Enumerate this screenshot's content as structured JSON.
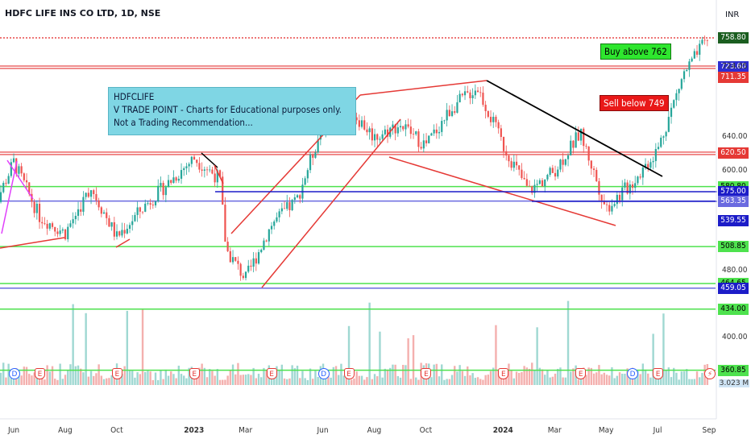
{
  "header": {
    "title": "HDFC LIFE INS CO LTD, 1D, NSE",
    "currency": "INR"
  },
  "annotations": {
    "note_lines": [
      "HDFCLIFE",
      "V TRADE POINT - Charts for Educational purposes only.",
      "Not a Trading Recommendation..."
    ],
    "buy_text": "Buy above 762",
    "sell_text": "Sell below 749"
  },
  "colors": {
    "up": "#26a69a",
    "down": "#ef5350",
    "green_line": "#4ee24e",
    "red_line": "#e84a4a",
    "blue_line": "#1c1cc8",
    "purple_line": "#6a6ae0"
  },
  "chart_data": {
    "type": "candlestick",
    "title": "HDFC LIFE INS CO LTD, 1D, NSE",
    "ylim": [
      341,
      790
    ],
    "y_ticks": [
      "724.05",
      "640.00",
      "600.00",
      "480.00",
      "400.00"
    ],
    "x_ticks": [
      "Jun",
      "Aug",
      "Oct",
      "2023",
      "Mar",
      "Jun",
      "Aug",
      "Oct",
      "2024",
      "Mar",
      "May",
      "Jul",
      "Sep"
    ],
    "x_bold": [
      "2023",
      "2024"
    ],
    "price_labels": [
      {
        "text": "758.80",
        "value": 758.8,
        "bg": "#1b5e20",
        "fg": "#ffffff"
      },
      {
        "text": "723.60",
        "value": 723.6,
        "bg": "#2d2dd1",
        "fg": "#ffffff"
      },
      {
        "text": "711.35",
        "value": 711.35,
        "bg": "#e53935",
        "fg": "#ffffff"
      },
      {
        "text": "620.50",
        "value": 620.5,
        "bg": "#e53935",
        "fg": "#ffffff"
      },
      {
        "text": "580.80",
        "value": 580.8,
        "bg": "#4ee24e",
        "fg": "#000000"
      },
      {
        "text": "575.00",
        "value": 575.0,
        "bg": "#1c1cc8",
        "fg": "#ffffff"
      },
      {
        "text": "563.35",
        "value": 563.35,
        "bg": "#6a6ae0",
        "fg": "#ffffff"
      },
      {
        "text": "539.55",
        "value": 539.55,
        "bg": "#1c1cc8",
        "fg": "#ffffff"
      },
      {
        "text": "508.85",
        "value": 508.85,
        "bg": "#4ee24e",
        "fg": "#000000"
      },
      {
        "text": "464.65",
        "value": 464.65,
        "bg": "#4ee24e",
        "fg": "#000000"
      },
      {
        "text": "459.05",
        "value": 459.05,
        "bg": "#1c1cc8",
        "fg": "#ffffff"
      },
      {
        "text": "434.00",
        "value": 434.0,
        "bg": "#4ee24e",
        "fg": "#000000"
      },
      {
        "text": "360.85",
        "value": 360.85,
        "bg": "#4ee24e",
        "fg": "#000000"
      }
    ],
    "volume_label": "3.023 M",
    "horizontal_levels": [
      {
        "value": 758.8,
        "color": "#e84a4a",
        "style": "dotted"
      },
      {
        "value": 723.6,
        "color": "#e84a4a",
        "style": "double"
      },
      {
        "value": 620.5,
        "color": "#e84a4a",
        "style": "double"
      },
      {
        "value": 580.8,
        "color": "#4ee24e",
        "style": "solid"
      },
      {
        "value": 563.35,
        "color": "#6a6ae0",
        "style": "solid"
      },
      {
        "value": 508.85,
        "color": "#4ee24e",
        "style": "solid"
      },
      {
        "value": 464.65,
        "color": "#4ee24e",
        "style": "solid"
      },
      {
        "value": 459.05,
        "color": "#6a6ae0",
        "style": "solid"
      },
      {
        "value": 434.0,
        "color": "#4ee24e",
        "style": "solid"
      },
      {
        "value": 360.85,
        "color": "#4ee24e",
        "style": "solid"
      }
    ],
    "events": [
      {
        "type": "D",
        "date": "Jun 2022"
      },
      {
        "type": "E",
        "date": "Jul 2022"
      },
      {
        "type": "E",
        "date": "Oct 2022"
      },
      {
        "type": "E",
        "date": "Jan 2023"
      },
      {
        "type": "E",
        "date": "Apr 2023"
      },
      {
        "type": "D",
        "date": "Jun 2023"
      },
      {
        "type": "E",
        "date": "Jul 2023"
      },
      {
        "type": "E",
        "date": "Oct 2023"
      },
      {
        "type": "E",
        "date": "Jan 2024"
      },
      {
        "type": "E",
        "date": "Apr 2024"
      },
      {
        "type": "D",
        "date": "Jun 2024"
      },
      {
        "type": "E",
        "date": "Jul 2024"
      },
      {
        "type": "S",
        "date": "Sep 2024"
      }
    ],
    "path_keypoints": [
      [
        "May 2022",
        540
      ],
      [
        "Jun 2022",
        610
      ],
      [
        "Jul 2022",
        545
      ],
      [
        "Aug 2022",
        525
      ],
      [
        "Sep 2022",
        580
      ],
      [
        "Oct 2022",
        520
      ],
      [
        "Nov 2022",
        555
      ],
      [
        "Dec 2022",
        585
      ],
      [
        "Jan 2023",
        615
      ],
      [
        "Feb 2023",
        590
      ],
      [
        "Feb 2023",
        505
      ],
      [
        "Mar 2023",
        470
      ],
      [
        "Apr 2023",
        535
      ],
      [
        "May 2023",
        565
      ],
      [
        "Jun 2023",
        655
      ],
      [
        "Jul 2023",
        675
      ],
      [
        "Aug 2023",
        640
      ],
      [
        "Sep 2023",
        655
      ],
      [
        "Oct 2023",
        630
      ],
      [
        "Nov 2023",
        675
      ],
      [
        "Dec 2023",
        700
      ],
      [
        "Jan 2024",
        630
      ],
      [
        "Feb 2024",
        575
      ],
      [
        "Mar 2024",
        600
      ],
      [
        "Apr 2024",
        645
      ],
      [
        "May 2024",
        555
      ],
      [
        "Jun 2024",
        585
      ],
      [
        "Jul 2024",
        625
      ],
      [
        "Aug 2024",
        715
      ],
      [
        "Sep 2024",
        760
      ]
    ]
  }
}
